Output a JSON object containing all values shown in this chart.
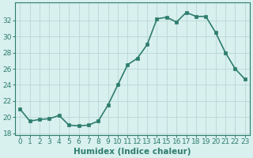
{
  "x": [
    0,
    1,
    2,
    3,
    4,
    5,
    6,
    7,
    8,
    9,
    10,
    11,
    12,
    13,
    14,
    15,
    16,
    17,
    18,
    19,
    20,
    21,
    22,
    23
  ],
  "y": [
    21.0,
    19.5,
    19.7,
    19.8,
    20.2,
    19.0,
    18.9,
    19.0,
    19.5,
    21.5,
    24.0,
    26.5,
    27.3,
    29.0,
    32.2,
    32.4,
    31.8,
    33.0,
    32.5,
    32.5,
    30.5,
    28.0,
    26.0,
    24.7
  ],
  "line_color": "#2e7d6e",
  "marker": "s",
  "marker_size": 2.5,
  "bg_color": "#d8f0ee",
  "grid_color": "#b8d8d4",
  "xlabel": "Humidex (Indice chaleur)",
  "xlim": [
    -0.5,
    23.5
  ],
  "ylim": [
    17.8,
    34.2
  ],
  "yticks": [
    18,
    20,
    22,
    24,
    26,
    28,
    30,
    32
  ],
  "xticks": [
    0,
    1,
    2,
    3,
    4,
    5,
    6,
    7,
    8,
    9,
    10,
    11,
    12,
    13,
    14,
    15,
    16,
    17,
    18,
    19,
    20,
    21,
    22,
    23
  ],
  "tick_fontsize": 6.5,
  "label_fontsize": 7.5,
  "line_width": 1.2
}
